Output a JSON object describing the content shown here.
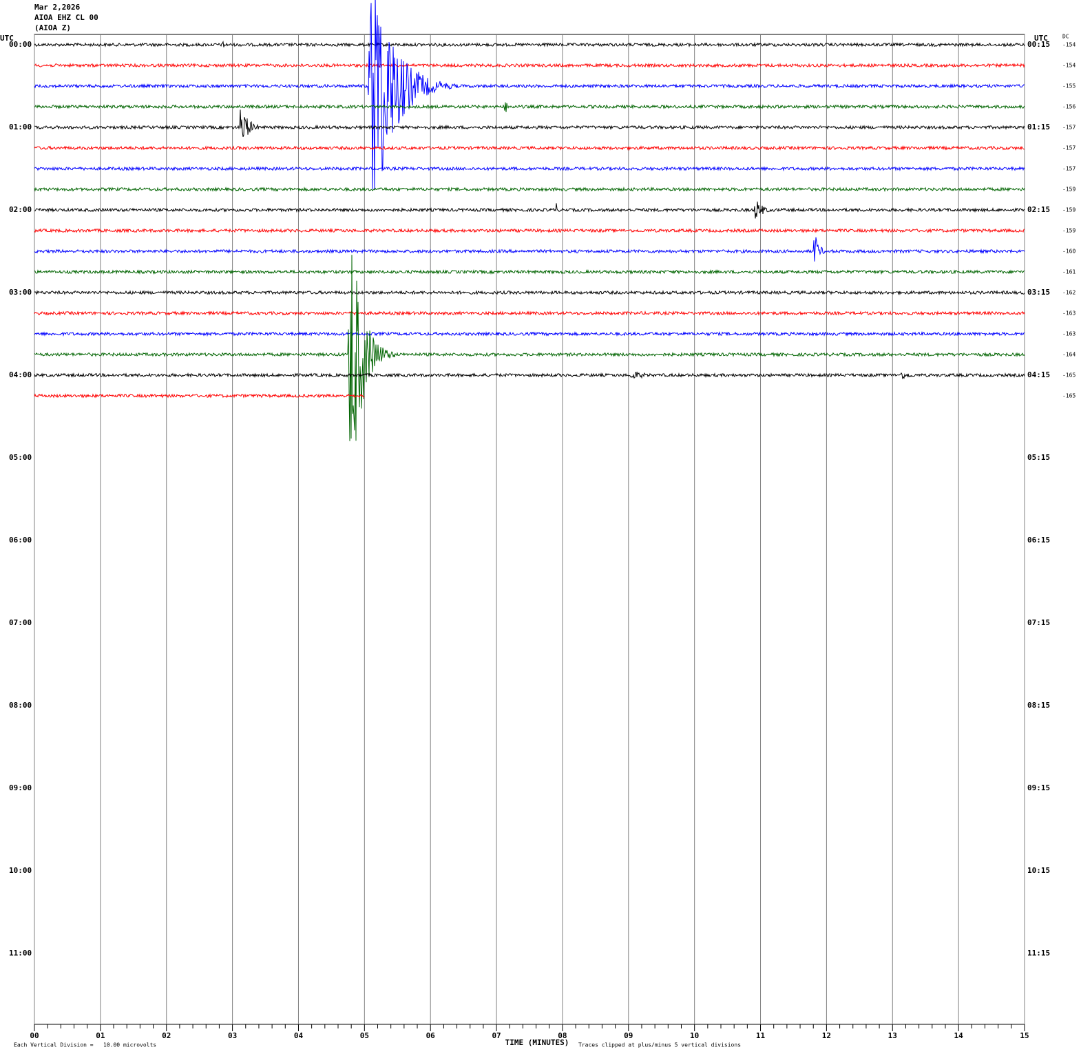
{
  "header": {
    "date": "Mar 2,2026",
    "station": "AIOA EHZ CL 00",
    "channel": "(AIOA Z)"
  },
  "chart_data": {
    "type": "helicorder",
    "left_axis_title": "UTC",
    "right_axis_title": "UTC",
    "dc_title": "DC",
    "left_labels": [
      "00:00",
      "01:00",
      "02:00",
      "03:00",
      "04:00",
      "05:00",
      "06:00",
      "07:00",
      "08:00",
      "09:00",
      "10:00",
      "11:00"
    ],
    "right_labels": [
      "00:15",
      "01:15",
      "02:15",
      "03:15",
      "04:15",
      "05:15",
      "06:15",
      "07:15",
      "08:15",
      "09:15",
      "10:15",
      "11:15"
    ],
    "x_label": "TIME (MINUTES)",
    "xlim": [
      0,
      15
    ],
    "xticks": [
      {
        "value": 0,
        "label": "00"
      },
      {
        "value": 1,
        "label": "01"
      },
      {
        "value": 2,
        "label": "02"
      },
      {
        "value": 3,
        "label": "03"
      },
      {
        "value": 4,
        "label": "04"
      },
      {
        "value": 5,
        "label": "05"
      },
      {
        "value": 6,
        "label": "06"
      },
      {
        "value": 7,
        "label": "07"
      },
      {
        "value": 8,
        "label": "08"
      },
      {
        "value": 9,
        "label": "09"
      },
      {
        "value": 10,
        "label": "10"
      },
      {
        "value": 11,
        "label": "11"
      },
      {
        "value": 12,
        "label": "12"
      },
      {
        "value": 13,
        "label": "13"
      },
      {
        "value": 14,
        "label": "14"
      },
      {
        "value": 15,
        "label": "15"
      }
    ],
    "colors": [
      "#000000",
      "#ff0000",
      "#0000ff",
      "#006400"
    ],
    "traces": [
      {
        "dc": -154
      },
      {
        "dc": -154
      },
      {
        "dc": -155
      },
      {
        "dc": -156
      },
      {
        "dc": -157
      },
      {
        "dc": -157
      },
      {
        "dc": -157
      },
      {
        "dc": -159
      },
      {
        "dc": -159
      },
      {
        "dc": -159
      },
      {
        "dc": -160
      },
      {
        "dc": -161
      },
      {
        "dc": -162
      },
      {
        "dc": -163
      },
      {
        "dc": -163
      },
      {
        "dc": -164
      },
      {
        "dc": -165
      },
      {
        "dc": -165,
        "end": 5
      }
    ],
    "clip_divisions": 5,
    "events": [
      {
        "trace": 0,
        "start": 2.85,
        "end": 3.0,
        "amplitude": 0.2
      },
      {
        "trace": 2,
        "start": 5.05,
        "end": 6.4,
        "amplitude": 5
      },
      {
        "trace": 3,
        "start": 7.12,
        "end": 7.3,
        "amplitude": 0.3
      },
      {
        "trace": 4,
        "start": 3.1,
        "end": 3.6,
        "amplitude": 0.8
      },
      {
        "trace": 8,
        "start": 7.9,
        "end": 8.0,
        "amplitude": 0.3
      },
      {
        "trace": 8,
        "start": 10.9,
        "end": 11.4,
        "amplitude": 0.4
      },
      {
        "trace": 10,
        "start": 11.8,
        "end": 12.1,
        "amplitude": 0.7
      },
      {
        "trace": 15,
        "start": 4.75,
        "end": 5.5,
        "amplitude": 5
      },
      {
        "trace": 16,
        "start": 9.0,
        "end": 10.1,
        "amplitude": 0.15
      },
      {
        "trace": 16,
        "start": 13.1,
        "end": 13.9,
        "amplitude": 0.15
      }
    ]
  },
  "footer": {
    "scale": "Each Vertical Division =   10.00 microvolts",
    "clip": "Traces clipped at plus/minus 5 vertical divisions"
  }
}
